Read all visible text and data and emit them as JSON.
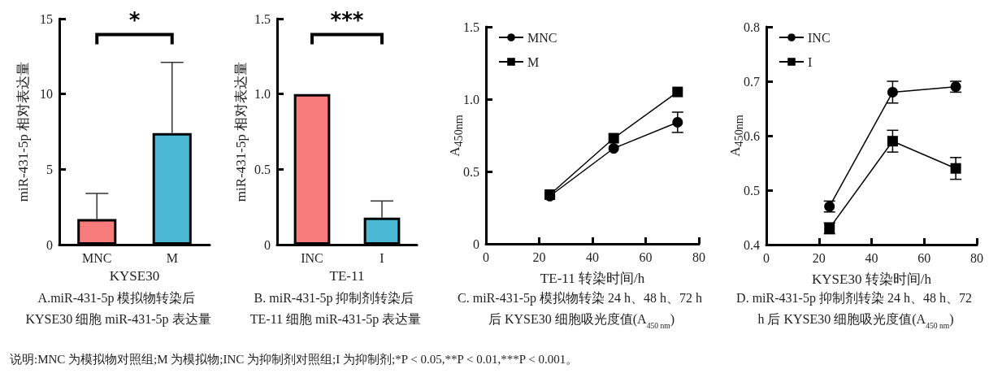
{
  "chart_data": [
    {
      "type": "bar",
      "title": "A.miR-431-5p 模拟物转染后 KYSE30 细胞 miR-431-5p 表达量",
      "xlabel": "KYSE30",
      "ylabel": "miR-431-5p 相对表达量",
      "categories": [
        "MNC",
        "M"
      ],
      "values": [
        1.7,
        7.4
      ],
      "colors": [
        "#f87c7c",
        "#4bb8d6"
      ],
      "errors": [
        [
          1.7,
          3.4
        ],
        [
          7.4,
          12.1
        ]
      ],
      "ylim": [
        0,
        15
      ],
      "yticks": [
        0,
        5,
        10,
        15
      ],
      "grid": false,
      "annotations": [
        "*",
        "说明:MNC 为模拟物对照组;M 为模拟物;INC 为抑制剂对照组;I 为抑制剂;*P < 0.05,**P < 0.01,***P < 0.001。"
      ]
    },
    {
      "type": "bar",
      "title": "B. miR-431-5p 抑制剂转染后 TE-11 细胞 miR-431-5p 表达量",
      "xlabel": "TE-11",
      "ylabel": "miR-431-5p 相对表达量",
      "categories": [
        "INC",
        "I"
      ],
      "values": [
        1.0,
        0.18
      ],
      "colors": [
        "#f87c7c",
        "#4bb8d6"
      ],
      "errors": [
        null,
        [
          0.18,
          0.29
        ]
      ],
      "ylim": [
        0,
        1.5
      ],
      "yticks": [
        0,
        0.5,
        {
          "value": 1,
          "label": "1.0"
        },
        1.5
      ],
      "grid": false,
      "annotations": [
        "***"
      ]
    },
    {
      "type": "line",
      "title": "C. miR-431-5p 模拟物转染 24 h、48 h、72 h 后 KYSE30 细胞吸光度值(A$_{450 nm}$)",
      "xlabel": "TE-11 转染时间/h",
      "ylabel": "A$_{450nm}$",
      "x": [
        24,
        48,
        72
      ],
      "xlim": [
        0,
        80
      ],
      "xticks": [
        0,
        20,
        40,
        60,
        80
      ],
      "ylim": [
        0,
        1.5
      ],
      "yticks": [
        0,
        0.5,
        {
          "value": 1,
          "label": "1.0"
        },
        1.5
      ],
      "grid": false,
      "legend": "top left",
      "line_style": "solid",
      "series": [
        {
          "name": "MNC",
          "color": "#000000",
          "marker": "circle",
          "values": [
            0.33,
            0.66,
            0.84
          ],
          "errors": [
            null,
            null,
            0.07
          ]
        },
        {
          "name": "M",
          "color": "#000000",
          "marker": "square",
          "values": [
            0.34,
            0.73,
            1.05
          ]
        }
      ]
    },
    {
      "type": "line",
      "title": "D. miR-431-5p 抑制剂转染 24 h、48 h、72 h 后 KYSE30 细胞吸光度值(A$_{450 nm}$)",
      "xlabel": "KYSE30 转染时间/h",
      "ylabel": "A$_{450nm}$",
      "x": [
        24,
        48,
        72
      ],
      "xlim": [
        0,
        80
      ],
      "xticks": [
        0,
        20,
        40,
        60,
        80
      ],
      "ylim": [
        0.4,
        0.8
      ],
      "yticks": [
        0.4,
        0.5,
        0.6,
        0.7,
        0.8
      ],
      "grid": false,
      "legend": "top left",
      "line_style": "solid",
      "series": [
        {
          "name": "INC",
          "color": "#000000",
          "marker": "circle",
          "values": [
            0.47,
            0.68,
            0.69
          ],
          "errors": [
            0.01,
            0.02,
            0.01
          ]
        },
        {
          "name": "I",
          "color": "#000000",
          "marker": "square",
          "values": [
            0.43,
            0.59,
            0.54
          ],
          "errors": [
            0.01,
            0.02,
            0.02
          ]
        }
      ]
    }
  ]
}
